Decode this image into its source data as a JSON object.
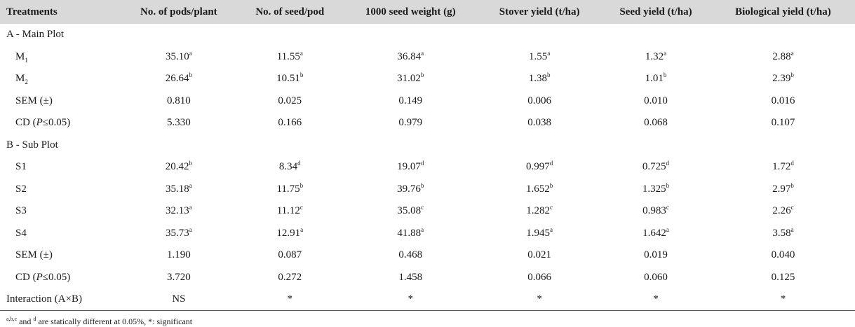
{
  "headers": [
    "Treatments",
    "No. of pods/plant",
    "No. of seed/pod",
    "1000 seed weight (g)",
    "Stover yield (t/ha)",
    "Seed yield (t/ha)",
    "Biological yield (t/ha)"
  ],
  "section_a": "A - Main Plot",
  "section_b": "B - Sub Plot",
  "main_rows": [
    {
      "label": "M",
      "label_sub": "1",
      "cells": [
        {
          "v": "35.10",
          "s": "a"
        },
        {
          "v": "11.55",
          "s": "a"
        },
        {
          "v": "36.84",
          "s": "a"
        },
        {
          "v": "1.55",
          "s": "a"
        },
        {
          "v": "1.32",
          "s": "a"
        },
        {
          "v": "2.88",
          "s": "a"
        }
      ]
    },
    {
      "label": "M",
      "label_sub": "2",
      "cells": [
        {
          "v": "26.64",
          "s": "b"
        },
        {
          "v": "10.51",
          "s": "b"
        },
        {
          "v": "31.02",
          "s": "b"
        },
        {
          "v": "1.38",
          "s": "b"
        },
        {
          "v": "1.01",
          "s": "b"
        },
        {
          "v": "2.39",
          "s": "b"
        }
      ]
    },
    {
      "label": "SEM (±)",
      "cells": [
        {
          "v": "0.810"
        },
        {
          "v": "0.025"
        },
        {
          "v": "0.149"
        },
        {
          "v": "0.006"
        },
        {
          "v": "0.010"
        },
        {
          "v": "0.016"
        }
      ]
    },
    {
      "label_pre": "CD (",
      "label_ital": "P",
      "label_post": "≤0.05)",
      "cells": [
        {
          "v": "5.330"
        },
        {
          "v": "0.166"
        },
        {
          "v": "0.979"
        },
        {
          "v": "0.038"
        },
        {
          "v": "0.068"
        },
        {
          "v": "0.107"
        }
      ]
    }
  ],
  "sub_rows": [
    {
      "label": "S1",
      "cells": [
        {
          "v": "20.42",
          "s": "b"
        },
        {
          "v": "8.34",
          "s": "d"
        },
        {
          "v": "19.07",
          "s": "d"
        },
        {
          "v": "0.997",
          "s": "d"
        },
        {
          "v": "0.725",
          "s": "d"
        },
        {
          "v": "1.72",
          "s": "d"
        }
      ]
    },
    {
      "label": "S2",
      "cells": [
        {
          "v": "35.18",
          "s": "a"
        },
        {
          "v": "11.75",
          "s": "b"
        },
        {
          "v": "39.76",
          "s": "b"
        },
        {
          "v": "1.652",
          "s": "b"
        },
        {
          "v": "1.325",
          "s": "b"
        },
        {
          "v": "2.97",
          "s": "b"
        }
      ]
    },
    {
      "label": "S3",
      "cells": [
        {
          "v": "32.13",
          "s": "a"
        },
        {
          "v": "11.12",
          "s": "c"
        },
        {
          "v": "35.08",
          "s": "c"
        },
        {
          "v": "1.282",
          "s": "c"
        },
        {
          "v": "0.983",
          "s": "c"
        },
        {
          "v": "2.26",
          "s": "c"
        }
      ]
    },
    {
      "label": "S4",
      "cells": [
        {
          "v": "35.73",
          "s": "a"
        },
        {
          "v": "12.91",
          "s": "a"
        },
        {
          "v": "41.88",
          "s": "a"
        },
        {
          "v": "1.945",
          "s": "a"
        },
        {
          "v": "1.642",
          "s": "a"
        },
        {
          "v": "3.58",
          "s": "a"
        }
      ]
    },
    {
      "label": "SEM (±)",
      "cells": [
        {
          "v": "1.190"
        },
        {
          "v": "0.087"
        },
        {
          "v": "0.468"
        },
        {
          "v": "0.021"
        },
        {
          "v": "0.019"
        },
        {
          "v": "0.040"
        }
      ]
    },
    {
      "label_pre": "CD (",
      "label_ital": "P",
      "label_post": "≤0.05)",
      "cells": [
        {
          "v": "3.720"
        },
        {
          "v": "0.272"
        },
        {
          "v": "1.458"
        },
        {
          "v": "0.066"
        },
        {
          "v": "0.060"
        },
        {
          "v": "0.125"
        }
      ]
    }
  ],
  "interaction": {
    "label": "Interaction (A×B)",
    "cells": [
      "NS",
      "*",
      "*",
      "*",
      "*",
      "*"
    ]
  },
  "footnote": {
    "sup1": "a,b,c",
    "t1": " and ",
    "sup2": "d",
    "t2": " are statically different at 0.05%, *: significant"
  },
  "colors": {
    "header_bg": "#d9d9d9",
    "text": "#1a1a1a"
  }
}
